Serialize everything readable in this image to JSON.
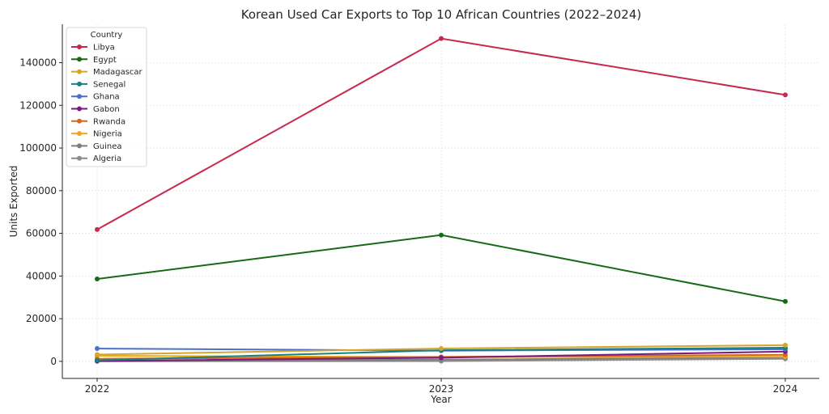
{
  "chart_data": {
    "type": "line",
    "title": "Korean Used Car Exports to Top 10 African Countries (2022–2024)",
    "xlabel": "Year",
    "ylabel": "Units Exported",
    "x": [
      "2022",
      "2023",
      "2024"
    ],
    "y_ticks": [
      "0",
      "20000",
      "40000",
      "60000",
      "80000",
      "100000",
      "120000",
      "140000"
    ],
    "ylim": [
      -8000,
      158000
    ],
    "grid": true,
    "legend": {
      "title": "Country",
      "placement": "top-left"
    },
    "series": [
      {
        "name": "Libya",
        "color": "#c8284d",
        "values": [
          61800,
          151300,
          124900
        ]
      },
      {
        "name": "Egypt",
        "color": "#166a16",
        "values": [
          38600,
          59200,
          28100
        ]
      },
      {
        "name": "Madagascar",
        "color": "#d4a62a",
        "values": [
          3200,
          6000,
          7600
        ]
      },
      {
        "name": "Senegal",
        "color": "#1a7f7f",
        "values": [
          500,
          5200,
          6400
        ]
      },
      {
        "name": "Ghana",
        "color": "#4a6fd1",
        "values": [
          6000,
          5000,
          5700
        ]
      },
      {
        "name": "Gabon",
        "color": "#7b1a7b",
        "values": [
          200,
          1700,
          4600
        ]
      },
      {
        "name": "Rwanda",
        "color": "#d2691e",
        "values": [
          1200,
          2100,
          3100
        ]
      },
      {
        "name": "Nigeria",
        "color": "#f0a81a",
        "values": [
          2600,
          2000,
          2200
        ]
      },
      {
        "name": "Guinea",
        "color": "#7f7f7f",
        "values": [
          100,
          800,
          1800
        ]
      },
      {
        "name": "Algeria",
        "color": "#8c8c8c",
        "values": [
          0,
          100,
          1200
        ]
      }
    ]
  }
}
